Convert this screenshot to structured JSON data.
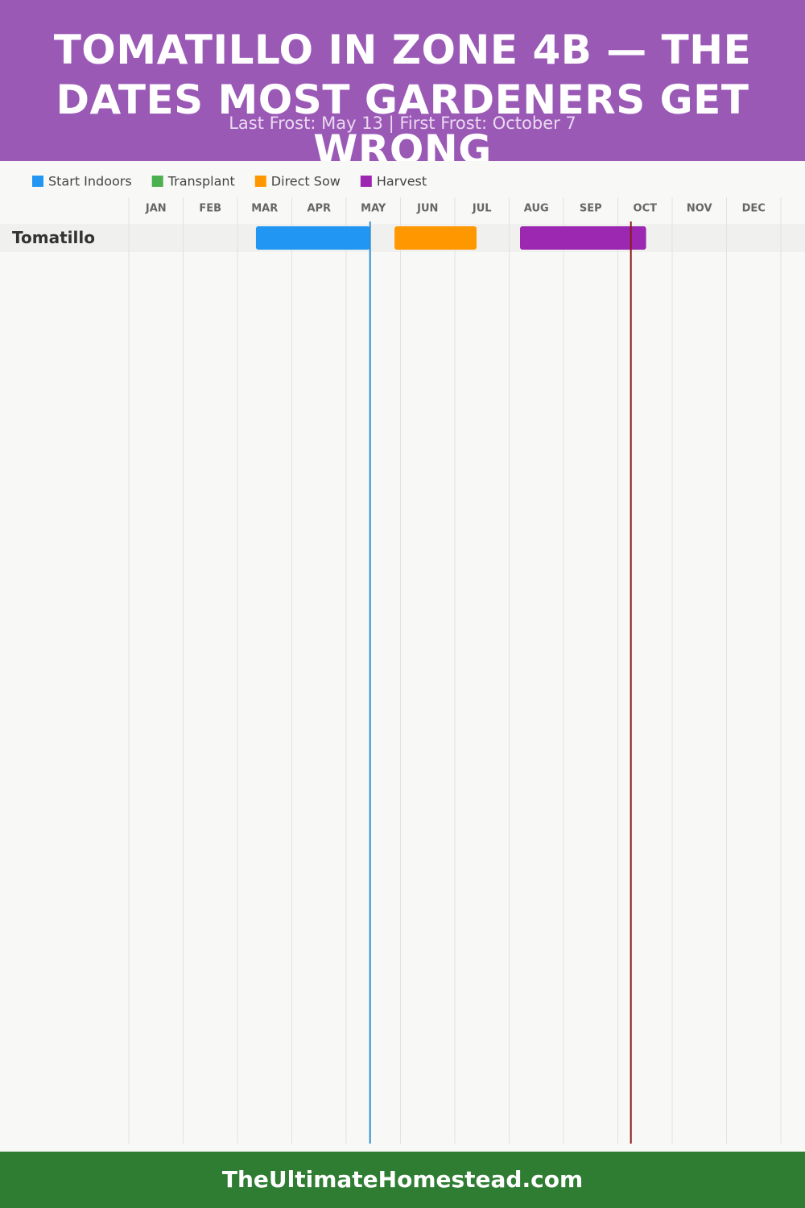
{
  "chart_data": {
    "type": "gantt",
    "title": "Tomatillo in Zone 4b — The Dates Most Gardeners Get Wrong",
    "subtitle": "Last Frost: May 13 | First Frost: October 7",
    "months": [
      "JAN",
      "FEB",
      "MAR",
      "APR",
      "MAY",
      "JUN",
      "JUL",
      "AUG",
      "SEP",
      "OCT",
      "NOV",
      "DEC"
    ],
    "xlim": [
      0,
      12
    ],
    "rows": [
      "Tomatillo"
    ],
    "series": [
      {
        "name": "Start Indoors",
        "color": "#2196f3",
        "start": [
          2.34
        ],
        "end": [
          4.44
        ]
      },
      {
        "name": "Transplant",
        "color": "#4caf50",
        "start": [
          null
        ],
        "end": [
          null
        ]
      },
      {
        "name": "Direct Sow",
        "color": "#ff9800",
        "start": [
          4.89
        ],
        "end": [
          6.4
        ]
      },
      {
        "name": "Harvest",
        "color": "#9c27b0",
        "start": [
          7.2
        ],
        "end": [
          9.52
        ]
      }
    ],
    "frost_lines": {
      "values": [
        4.44,
        9.24
      ],
      "colors": [
        "#2b8fd6",
        "#8b1a1a"
      ]
    }
  },
  "footer": "TheUltimateHomestead.com"
}
